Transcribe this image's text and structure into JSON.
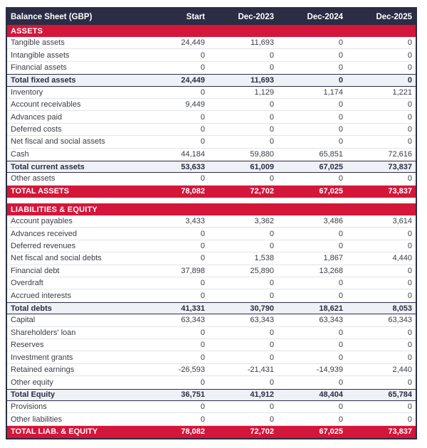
{
  "table": {
    "title": "Balance Sheet (GBP)",
    "columns": [
      "Start",
      "Dec-2023",
      "Dec-2024",
      "Dec-2025"
    ],
    "colors": {
      "header_bg": "#2b2d45",
      "header_text": "#ffffff",
      "section_band_bg": "#d4163a",
      "section_band_text": "#ffffff",
      "subtotal_row_bg": "#eef1f5",
      "grand_total_bg": "#d4163a",
      "body_text": "#3a3d46",
      "row_divider": "#e2e4e9",
      "table_border": "#2b2d45"
    },
    "sections": [
      {
        "label": "ASSETS",
        "rows": [
          {
            "label": "Tangible assets",
            "style": "normal",
            "values": [
              "24,449",
              "11,693",
              "0",
              "0"
            ]
          },
          {
            "label": "Intangible assets",
            "style": "normal",
            "values": [
              "0",
              "0",
              "0",
              "0"
            ]
          },
          {
            "label": "Financial assets",
            "style": "normal",
            "values": [
              "0",
              "0",
              "0",
              "0"
            ]
          },
          {
            "label": "Total fixed assets",
            "style": "subtotal",
            "values": [
              "24,449",
              "11,693",
              "0",
              "0"
            ]
          },
          {
            "label": "Inventory",
            "style": "normal",
            "values": [
              "0",
              "1,129",
              "1,174",
              "1,221"
            ]
          },
          {
            "label": "Account receivables",
            "style": "normal",
            "values": [
              "9,449",
              "0",
              "0",
              "0"
            ]
          },
          {
            "label": "Advances paid",
            "style": "normal",
            "values": [
              "0",
              "0",
              "0",
              "0"
            ]
          },
          {
            "label": "Deferred costs",
            "style": "normal",
            "values": [
              "0",
              "0",
              "0",
              "0"
            ]
          },
          {
            "label": "Net fiscal and social assets",
            "style": "normal",
            "values": [
              "0",
              "0",
              "0",
              "0"
            ]
          },
          {
            "label": "Cash",
            "style": "normal",
            "values": [
              "44,184",
              "59,880",
              "65,851",
              "72,616"
            ]
          },
          {
            "label": "Total current assets",
            "style": "subtotal",
            "values": [
              "53,633",
              "61,009",
              "67,025",
              "73,837"
            ]
          },
          {
            "label": "Other assets",
            "style": "normal",
            "values": [
              "0",
              "0",
              "0",
              "0"
            ]
          },
          {
            "label": "TOTAL ASSETS",
            "style": "grand",
            "values": [
              "78,082",
              "72,702",
              "67,025",
              "73,837"
            ]
          }
        ]
      },
      {
        "label": "LIABILITIES & EQUITY",
        "rows": [
          {
            "label": "Account payables",
            "style": "normal",
            "values": [
              "3,433",
              "3,362",
              "3,486",
              "3,614"
            ]
          },
          {
            "label": "Advances received",
            "style": "normal",
            "values": [
              "0",
              "0",
              "0",
              "0"
            ]
          },
          {
            "label": "Deferred revenues",
            "style": "normal",
            "values": [
              "0",
              "0",
              "0",
              "0"
            ]
          },
          {
            "label": "Net fiscal and social debts",
            "style": "normal",
            "values": [
              "0",
              "1,538",
              "1,867",
              "4,440"
            ]
          },
          {
            "label": "Financial debt",
            "style": "normal",
            "values": [
              "37,898",
              "25,890",
              "13,268",
              "0"
            ]
          },
          {
            "label": "Overdraft",
            "style": "normal",
            "values": [
              "0",
              "0",
              "0",
              "0"
            ]
          },
          {
            "label": "Accrued interests",
            "style": "normal",
            "values": [
              "0",
              "0",
              "0",
              "0"
            ]
          },
          {
            "label": "Total debts",
            "style": "subtotal",
            "values": [
              "41,331",
              "30,790",
              "18,621",
              "8,053"
            ]
          },
          {
            "label": "Capital",
            "style": "normal",
            "values": [
              "63,343",
              "63,343",
              "63,343",
              "63,343"
            ]
          },
          {
            "label": "Shareholders' loan",
            "style": "normal",
            "values": [
              "0",
              "0",
              "0",
              "0"
            ]
          },
          {
            "label": "Reserves",
            "style": "normal",
            "values": [
              "0",
              "0",
              "0",
              "0"
            ]
          },
          {
            "label": "Investment grants",
            "style": "normal",
            "values": [
              "0",
              "0",
              "0",
              "0"
            ]
          },
          {
            "label": "Retained earnings",
            "style": "normal",
            "values": [
              "-26,593",
              "-21,431",
              "-14,939",
              "2,440"
            ]
          },
          {
            "label": "Other equity",
            "style": "normal",
            "values": [
              "0",
              "0",
              "0",
              "0"
            ]
          },
          {
            "label": "Total Equity",
            "style": "subtotal",
            "values": [
              "36,751",
              "41,912",
              "48,404",
              "65,784"
            ]
          },
          {
            "label": "Provisions",
            "style": "normal",
            "values": [
              "0",
              "0",
              "0",
              "0"
            ]
          },
          {
            "label": "Other liabilities",
            "style": "normal",
            "values": [
              "0",
              "0",
              "0",
              "0"
            ]
          },
          {
            "label": "TOTAL LIAB. & EQUITY",
            "style": "grand",
            "values": [
              "78,082",
              "72,702",
              "67,025",
              "73,837"
            ]
          }
        ]
      }
    ]
  }
}
